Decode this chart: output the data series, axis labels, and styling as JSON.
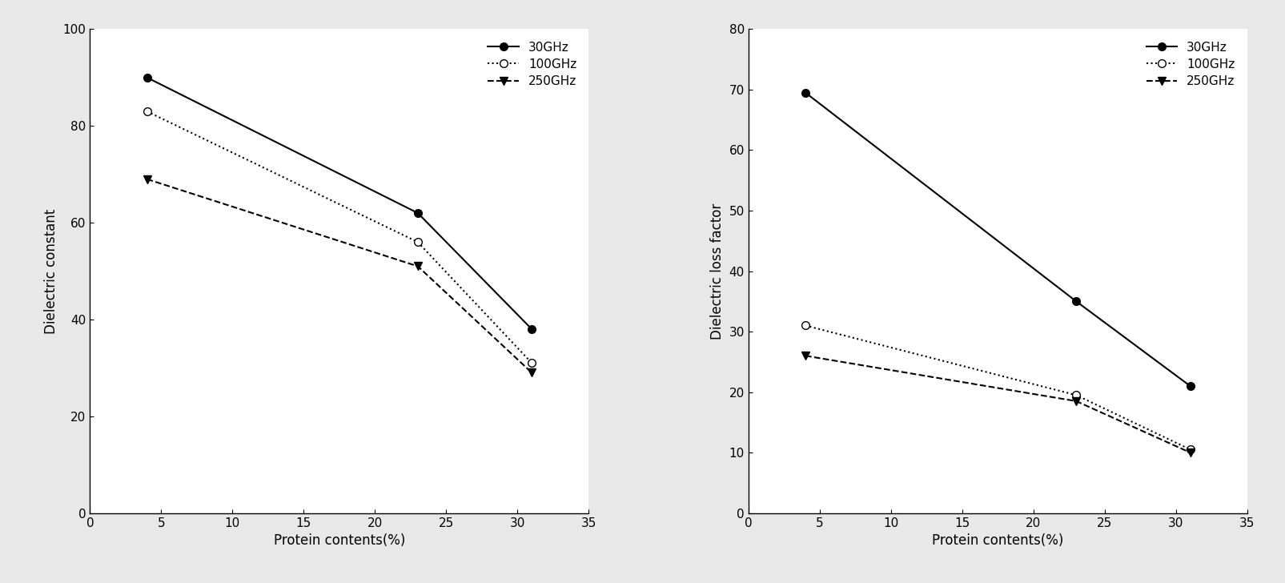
{
  "x": [
    4,
    23,
    31
  ],
  "left_plot": {
    "ylabel": "Dielectric constant",
    "xlabel": "Protein contents(%)",
    "ylim": [
      0,
      100
    ],
    "xlim": [
      0,
      35
    ],
    "xticks": [
      0,
      5,
      10,
      15,
      20,
      25,
      30,
      35
    ],
    "yticks": [
      0,
      20,
      40,
      60,
      80,
      100
    ],
    "series": [
      {
        "label": "30GHz",
        "values": [
          90,
          62,
          38
        ],
        "linestyle": "-",
        "marker": "o",
        "markerfacecolor": "black",
        "markeredgecolor": "black",
        "color": "black"
      },
      {
        "label": "100GHz",
        "values": [
          83,
          56,
          31
        ],
        "linestyle": ":",
        "marker": "o",
        "markerfacecolor": "white",
        "markeredgecolor": "black",
        "color": "black"
      },
      {
        "label": "250GHz",
        "values": [
          69,
          51,
          29
        ],
        "linestyle": "--",
        "marker": "v",
        "markerfacecolor": "black",
        "markeredgecolor": "black",
        "color": "black"
      }
    ]
  },
  "right_plot": {
    "ylabel": "Dielectric loss factor",
    "xlabel": "Protein contents(%)",
    "ylim": [
      0,
      80
    ],
    "xlim": [
      0,
      35
    ],
    "xticks": [
      0,
      5,
      10,
      15,
      20,
      25,
      30,
      35
    ],
    "yticks": [
      0,
      10,
      20,
      30,
      40,
      50,
      60,
      70,
      80
    ],
    "series": [
      {
        "label": "30GHz",
        "values": [
          69.5,
          35,
          21
        ],
        "linestyle": "-",
        "marker": "o",
        "markerfacecolor": "black",
        "markeredgecolor": "black",
        "color": "black"
      },
      {
        "label": "100GHz",
        "values": [
          31,
          19.5,
          10.5
        ],
        "linestyle": ":",
        "marker": "o",
        "markerfacecolor": "white",
        "markeredgecolor": "black",
        "color": "black"
      },
      {
        "label": "250GHz",
        "values": [
          26,
          18.5,
          10
        ],
        "linestyle": "--",
        "marker": "v",
        "markerfacecolor": "black",
        "markeredgecolor": "black",
        "color": "black"
      }
    ]
  },
  "background_color": "#e8e8e8",
  "plot_background": "#ffffff",
  "markersize": 7,
  "linewidth": 1.5,
  "fontsize_label": 12,
  "fontsize_tick": 11,
  "fontsize_legend": 11
}
